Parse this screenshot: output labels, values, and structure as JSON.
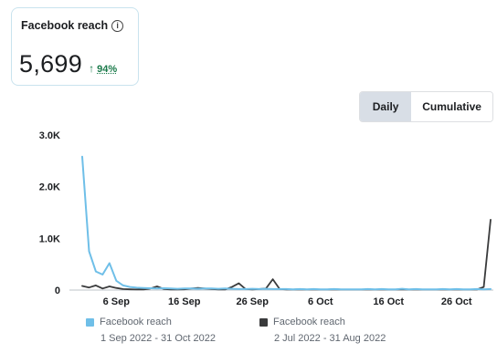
{
  "card": {
    "label": "Facebook reach",
    "info_icon": "ⓘ",
    "value": "5,699",
    "change_arrow": "↑",
    "change_value": "94%"
  },
  "toggle": {
    "daily": "Daily",
    "cumulative": "Cumulative",
    "selected": "Daily"
  },
  "colors": {
    "current": "#6fbfe8",
    "previous": "#3a3b3c",
    "axis": "#bec3c9"
  },
  "chart_data": {
    "type": "line",
    "ylim": [
      0,
      3000
    ],
    "y_ticks": [
      0,
      1000,
      2000,
      3000
    ],
    "y_tick_labels": [
      "0",
      "1.0K",
      "2.0K",
      "3.0K"
    ],
    "x_tick_labels": [
      "6 Sep",
      "16 Sep",
      "26 Sep",
      "6 Oct",
      "16 Oct",
      "26 Oct"
    ],
    "x_tick_index": [
      5,
      15,
      25,
      35,
      45,
      55
    ],
    "n_points": 61,
    "series": [
      {
        "name": "Facebook reach",
        "range": "1 Sep 2022 - 31 Oct 2022",
        "color": "#6fbfe8",
        "values": [
          2580,
          750,
          360,
          300,
          520,
          180,
          90,
          60,
          45,
          40,
          35,
          30,
          35,
          30,
          25,
          30,
          30,
          25,
          30,
          30,
          25,
          30,
          25,
          20,
          20,
          25,
          20,
          25,
          20,
          20,
          20,
          15,
          20,
          15,
          20,
          15,
          15,
          20,
          15,
          15,
          15,
          15,
          20,
          15,
          20,
          15,
          15,
          25,
          15,
          20,
          15,
          15,
          15,
          20,
          15,
          20,
          15,
          15,
          20,
          15,
          20
        ]
      },
      {
        "name": "Facebook reach",
        "range": "2 Jul 2022 - 31 Aug 2022",
        "color": "#3a3b3c",
        "values": [
          80,
          50,
          90,
          30,
          70,
          40,
          20,
          15,
          10,
          10,
          30,
          70,
          20,
          10,
          10,
          15,
          30,
          40,
          30,
          20,
          10,
          10,
          60,
          130,
          20,
          10,
          20,
          30,
          210,
          20,
          10,
          10,
          15,
          10,
          10,
          10,
          10,
          15,
          10,
          10,
          10,
          10,
          10,
          10,
          10,
          10,
          10,
          10,
          10,
          10,
          10,
          10,
          10,
          10,
          10,
          10,
          10,
          10,
          10,
          60,
          1360
        ]
      }
    ]
  }
}
